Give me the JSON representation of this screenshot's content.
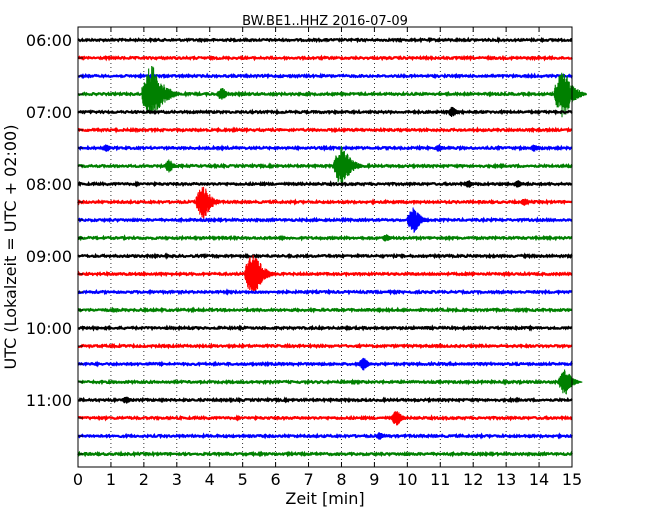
{
  "chart_data": {
    "type": "line",
    "title": "BW.BE1..HHZ 2016-07-09",
    "xlabel": "Zeit  [min]",
    "ylabel": "UTC (Lokalzeit = UTC + 02:00)",
    "xlim": [
      0,
      15
    ],
    "x_ticks": [
      "0",
      "1",
      "2",
      "3",
      "4",
      "5",
      "6",
      "7",
      "8",
      "9",
      "10",
      "11",
      "12",
      "13",
      "14",
      "15"
    ],
    "row_interval_minutes": 15,
    "colors": [
      "#000000",
      "#ff0000",
      "#0000ff",
      "#008000"
    ],
    "grid": "vertical dotted lines at each minute",
    "hour_labels": [
      "06:00",
      "07:00",
      "08:00",
      "09:00",
      "10:00",
      "11:00"
    ],
    "rows": [
      {
        "start": "06:00",
        "color": "#000000",
        "events": []
      },
      {
        "start": "06:15",
        "color": "#ff0000",
        "events": []
      },
      {
        "start": "06:30",
        "color": "#0000ff",
        "events": []
      },
      {
        "start": "06:45",
        "color": "#008000",
        "events": [
          {
            "t": 2.1,
            "amp": 2.2
          },
          {
            "t": 4.3,
            "amp": 0.5
          },
          {
            "t": 14.6,
            "amp": 1.8
          }
        ]
      },
      {
        "start": "07:00",
        "color": "#000000",
        "events": [
          {
            "t": 11.3,
            "amp": 0.4
          }
        ]
      },
      {
        "start": "07:15",
        "color": "#ff0000",
        "events": []
      },
      {
        "start": "07:30",
        "color": "#0000ff",
        "events": [
          {
            "t": 0.8,
            "amp": 0.3
          },
          {
            "t": 10.9,
            "amp": 0.3
          },
          {
            "t": 13.8,
            "amp": 0.3
          }
        ]
      },
      {
        "start": "07:45",
        "color": "#008000",
        "events": [
          {
            "t": 2.7,
            "amp": 0.5
          },
          {
            "t": 7.9,
            "amp": 1.6
          }
        ]
      },
      {
        "start": "08:00",
        "color": "#000000",
        "events": [
          {
            "t": 11.8,
            "amp": 0.3
          },
          {
            "t": 13.3,
            "amp": 0.3
          }
        ]
      },
      {
        "start": "08:15",
        "color": "#ff0000",
        "events": [
          {
            "t": 3.7,
            "amp": 1.3
          },
          {
            "t": 13.5,
            "amp": 0.3
          }
        ]
      },
      {
        "start": "08:30",
        "color": "#0000ff",
        "events": [
          {
            "t": 10.1,
            "amp": 1.0
          }
        ]
      },
      {
        "start": "08:45",
        "color": "#008000",
        "events": [
          {
            "t": 9.3,
            "amp": 0.3
          }
        ]
      },
      {
        "start": "09:00",
        "color": "#000000",
        "events": []
      },
      {
        "start": "09:15",
        "color": "#ff0000",
        "events": [
          {
            "t": 5.2,
            "amp": 1.7
          }
        ]
      },
      {
        "start": "09:30",
        "color": "#0000ff",
        "events": []
      },
      {
        "start": "09:45",
        "color": "#008000",
        "events": []
      },
      {
        "start": "10:00",
        "color": "#000000",
        "events": []
      },
      {
        "start": "10:15",
        "color": "#ff0000",
        "events": []
      },
      {
        "start": "10:30",
        "color": "#0000ff",
        "events": [
          {
            "t": 8.6,
            "amp": 0.5
          }
        ]
      },
      {
        "start": "10:45",
        "color": "#008000",
        "events": [
          {
            "t": 14.7,
            "amp": 1.0
          }
        ]
      },
      {
        "start": "11:00",
        "color": "#000000",
        "events": [
          {
            "t": 1.4,
            "amp": 0.3
          }
        ]
      },
      {
        "start": "11:15",
        "color": "#ff0000",
        "events": [
          {
            "t": 9.6,
            "amp": 0.6
          }
        ]
      },
      {
        "start": "11:30",
        "color": "#0000ff",
        "events": [
          {
            "t": 9.1,
            "amp": 0.3
          }
        ]
      },
      {
        "start": "11:45",
        "color": "#008000",
        "events": []
      }
    ]
  }
}
